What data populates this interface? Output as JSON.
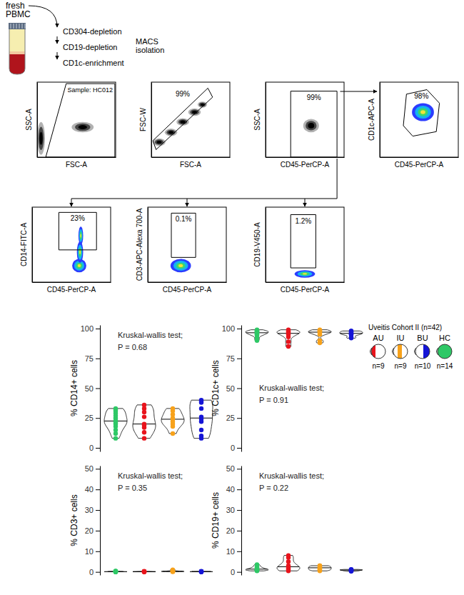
{
  "diagram": {
    "source": [
      "fresh",
      "PBMC"
    ],
    "steps": [
      "CD304-depletion",
      "CD19-depletion",
      "CD1c-enrichment"
    ],
    "method": [
      "MACS",
      "isolation"
    ]
  },
  "cohort_legend": {
    "title": "Uveitis Cohort II (n=42)",
    "groups": [
      {
        "name": "AU",
        "n": "n=9",
        "color": "#e8141c"
      },
      {
        "name": "IU",
        "n": "n=9",
        "color": "#f7a21b"
      },
      {
        "name": "BU",
        "n": "n=10",
        "color": "#1515d6"
      },
      {
        "name": "HC",
        "n": "n=14",
        "color": "#2ec866"
      }
    ]
  },
  "chart_data": [
    {
      "type": "flow",
      "xlabel": "FSC-A",
      "ylabel": "SSC-A",
      "xlim": [
        0,
        100
      ],
      "ylim": [
        0,
        100
      ],
      "marker": "dot",
      "color": "#000000",
      "annotation": "Sample: HC012",
      "populations": [
        {
          "cx": 58,
          "cy": 40,
          "rx": 14,
          "ry": 7
        },
        {
          "cx": 5,
          "cy": 25,
          "rx": 5,
          "ry": 22
        }
      ],
      "gate": {
        "points": [
          [
            11,
            0
          ],
          [
            37,
            98
          ],
          [
            99,
            98
          ],
          [
            99,
            0
          ]
        ]
      }
    },
    {
      "type": "flow",
      "xlabel": "FSC-A",
      "ylabel": "FSC-W",
      "xlim": [
        0,
        100
      ],
      "ylim": [
        0,
        100
      ],
      "marker": "dot",
      "color": "#000000",
      "populations": [
        {
          "cx": 10,
          "cy": 20,
          "rx": 8,
          "ry": 5
        },
        {
          "cx": 25,
          "cy": 33,
          "rx": 8,
          "ry": 5
        },
        {
          "cx": 40,
          "cy": 47,
          "rx": 8,
          "ry": 5
        },
        {
          "cx": 55,
          "cy": 60,
          "rx": 8,
          "ry": 5
        },
        {
          "cx": 65,
          "cy": 70,
          "rx": 6,
          "ry": 4
        }
      ],
      "gate": {
        "points": [
          [
            2,
            22
          ],
          [
            6,
            10
          ],
          [
            78,
            80
          ],
          [
            72,
            92
          ]
        ],
        "label": "99%"
      }
    },
    {
      "type": "flow",
      "xlabel": "CD45-PerCP-A",
      "ylabel": "SSC-A",
      "xlim": [
        0,
        100
      ],
      "ylim": [
        0,
        100
      ],
      "marker": "dot",
      "color": "#000000",
      "populations": [
        {
          "cx": 58,
          "cy": 42,
          "rx": 10,
          "ry": 9
        }
      ],
      "gate": {
        "points": [
          [
            32,
            0
          ],
          [
            32,
            88
          ],
          [
            91,
            88
          ],
          [
            91,
            0
          ]
        ],
        "label": "99%"
      }
    },
    {
      "type": "flow",
      "xlabel": "CD45-PerCP-A",
      "ylabel": "CD1c-APC-A",
      "xlim": [
        0,
        100
      ],
      "ylim": [
        0,
        100
      ],
      "marker": "density",
      "populations": [
        {
          "cx": 55,
          "cy": 60,
          "rx": 14,
          "ry": 12
        }
      ],
      "gate": {
        "points": [
          [
            30,
            42
          ],
          [
            34,
            84
          ],
          [
            60,
            90
          ],
          [
            76,
            72
          ],
          [
            72,
            34
          ],
          [
            42,
            28
          ]
        ],
        "label": "98%"
      }
    },
    {
      "type": "flow",
      "xlabel": "CD45-PerCP-A",
      "ylabel": "CD14-FITC-A",
      "xlim": [
        0,
        100
      ],
      "ylim": [
        0,
        100
      ],
      "marker": "density",
      "populations": [
        {
          "cx": 60,
          "cy": 22,
          "rx": 9,
          "ry": 9
        },
        {
          "cx": 61,
          "cy": 40,
          "rx": 4,
          "ry": 14
        },
        {
          "cx": 62,
          "cy": 62,
          "rx": 3,
          "ry": 12
        }
      ],
      "gate": {
        "points": [
          [
            34,
            43
          ],
          [
            34,
            93
          ],
          [
            82,
            93
          ],
          [
            82,
            43
          ]
        ],
        "label": "23%"
      }
    },
    {
      "type": "flow",
      "xlabel": "CD45-PerCP-A",
      "ylabel": "CD3-APC-Alexa 700-A",
      "xlim": [
        0,
        100
      ],
      "ylim": [
        0,
        100
      ],
      "marker": "density",
      "populations": [
        {
          "cx": 42,
          "cy": 22,
          "rx": 13,
          "ry": 9
        }
      ],
      "gate": {
        "points": [
          [
            30,
            33
          ],
          [
            30,
            92
          ],
          [
            61,
            92
          ],
          [
            61,
            33
          ]
        ],
        "label": "0.1%"
      }
    },
    {
      "type": "flow",
      "xlabel": "CD45-PerCP-A",
      "ylabel": "CD19-V450-A",
      "xlim": [
        0,
        100
      ],
      "ylim": [
        0,
        100
      ],
      "marker": "density",
      "populations": [
        {
          "cx": 50,
          "cy": 11,
          "rx": 13,
          "ry": 5
        }
      ],
      "gate": {
        "points": [
          [
            32,
            19
          ],
          [
            32,
            90
          ],
          [
            64,
            90
          ],
          [
            64,
            19
          ]
        ],
        "label": "1.2%"
      }
    },
    {
      "type": "violin",
      "ylabel": "% CD14+ cells",
      "ylim": [
        -3,
        103
      ],
      "yticks": [
        0,
        25,
        50,
        75,
        100
      ],
      "tick_labels": "y",
      "annotation": [
        "Kruskal-wallis test;",
        "P = 0.68"
      ],
      "series": [
        {
          "color": "#2ec866",
          "values": [
            8,
            12,
            15,
            18,
            20,
            21,
            22,
            23,
            25,
            27,
            29,
            31,
            32,
            33
          ]
        },
        {
          "color": "#e8141c",
          "values": [
            8,
            13,
            17,
            19,
            20,
            26,
            30,
            33,
            36
          ]
        },
        {
          "color": "#f7a21b",
          "values": [
            12,
            18,
            20,
            22,
            24,
            25,
            28,
            31,
            33
          ]
        },
        {
          "color": "#1515d6",
          "values": [
            8,
            10,
            15,
            22,
            24,
            26,
            33,
            38,
            39,
            40
          ]
        }
      ]
    },
    {
      "type": "violin",
      "ylabel": "% CD1c+ cells",
      "ylim": [
        -3,
        103
      ],
      "yticks": [
        0,
        25,
        50,
        75,
        100
      ],
      "tick_labels": "y",
      "annotation": [
        "Kruskal-wallis test;",
        "P = 0.91"
      ],
      "series": [
        {
          "color": "#2ec866",
          "values": [
            90,
            92,
            94,
            95,
            95,
            96,
            96,
            97,
            97,
            97,
            98,
            98,
            98,
            99
          ]
        },
        {
          "color": "#e8141c",
          "values": [
            85,
            89,
            93,
            95,
            96,
            97,
            97,
            98,
            99
          ]
        },
        {
          "color": "#f7a21b",
          "values": [
            88,
            90,
            95,
            96,
            97,
            97,
            98,
            98,
            99
          ]
        },
        {
          "color": "#1515d6",
          "values": [
            92,
            93,
            95,
            95,
            96,
            96,
            97,
            97,
            98,
            98
          ]
        }
      ]
    },
    {
      "type": "violin",
      "ylabel": "% CD3+ cells",
      "ylim": [
        -1.5,
        51.5
      ],
      "yticks": [
        0,
        10,
        20,
        30,
        40,
        50
      ],
      "tick_labels": "y",
      "annotation": [
        "Kruskal-wallis test;",
        "P = 0.35"
      ],
      "series": [
        {
          "color": "#2ec866",
          "values": [
            0.1,
            0.1,
            0.2,
            0.1,
            0.3,
            0.2,
            0.1,
            0.1,
            0.2,
            0.4,
            0.1,
            0.2,
            0.3,
            0.1
          ]
        },
        {
          "color": "#e8141c",
          "values": [
            0.1,
            0.1,
            0.2,
            0.1,
            0.2,
            0.1,
            0.3,
            0.1,
            0.2
          ]
        },
        {
          "color": "#f7a21b",
          "values": [
            0.2,
            0.5,
            0.3,
            0.1,
            0.4,
            0.2,
            1.0,
            0.3,
            0.2
          ]
        },
        {
          "color": "#1515d6",
          "values": [
            0.1,
            0.2,
            0.1,
            0.3,
            0.2,
            0.1,
            0.1,
            0.2,
            0.1,
            0.2
          ]
        }
      ]
    },
    {
      "type": "violin",
      "ylabel": "% CD19+ cells",
      "ylim": [
        -1.5,
        51.5
      ],
      "yticks": [
        0,
        10,
        20,
        30,
        40,
        50
      ],
      "tick_labels": "y",
      "annotation": [
        "Kruskal-wallis test;",
        "P = 0.22"
      ],
      "series": [
        {
          "color": "#2ec866",
          "values": [
            0.5,
            0.8,
            1,
            1,
            1.2,
            1.5,
            1.5,
            2,
            2,
            2.5,
            3,
            3.5,
            0.7,
            1.1
          ]
        },
        {
          "color": "#e8141c",
          "values": [
            0.5,
            1,
            1.5,
            2,
            2.5,
            3,
            5,
            7,
            8
          ]
        },
        {
          "color": "#f7a21b",
          "values": [
            0.5,
            1,
            1,
            1.5,
            2,
            2,
            2.5,
            3,
            3
          ]
        },
        {
          "color": "#1515d6",
          "values": [
            0.3,
            0.5,
            0.5,
            0.8,
            1,
            1,
            1.2,
            0.7,
            0.9,
            1.1
          ]
        }
      ]
    }
  ]
}
